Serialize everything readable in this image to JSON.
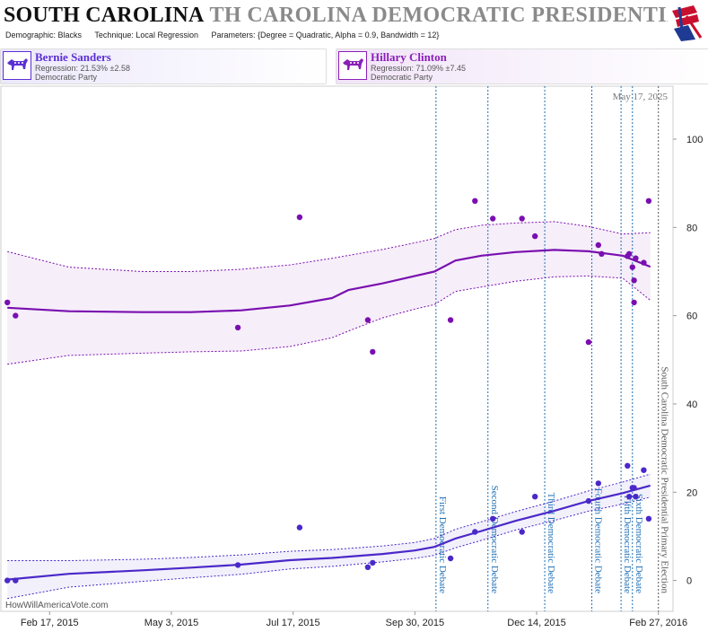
{
  "header": {
    "title": "SOUTH CAROLINA",
    "title_ghost": "TH CAROLINA DEMOCRATIC PRESIDENTIAL PRIMARY",
    "demographic": "Demographic: Blacks",
    "technique": "Technique: Local Regression",
    "parameters": "Parameters: {Degree = Quadratic, Alpha = 0.9, Bandwidth = 12}"
  },
  "candidates": [
    {
      "name": "Bernie Sanders",
      "regression": "Regression: 21.53% ±2.58",
      "party": "Democratic Party",
      "color": "#5b2fd6"
    },
    {
      "name": "Hillary Clinton",
      "regression": "Regression: 71.09% ±7.45",
      "party": "Democratic Party",
      "color": "#8a1fb8"
    }
  ],
  "attribution": "HowWillAmericaVote.com",
  "chart_data": {
    "type": "scatter",
    "date_label": "May 17, 2025",
    "x_ticks": [
      "2015-02-17",
      "2015-05-03",
      "2015-07-17",
      "2015-09-30",
      "2015-12-14",
      "2016-02-27"
    ],
    "x_tick_labels": [
      "Feb 17, 2015",
      "May 3, 2015",
      "Jul 17, 2015",
      "Sep 30, 2015",
      "Dec 14, 2015",
      "Feb 27, 2016"
    ],
    "x_range": [
      "2015-01-18",
      "2016-03-07"
    ],
    "y_ticks": [
      0,
      20,
      40,
      60,
      80,
      100
    ],
    "ylim": [
      -7,
      112
    ],
    "grid": false,
    "events": [
      {
        "date": "2015-10-13",
        "label": "First Democratic Debate",
        "color": "#1f6fb5"
      },
      {
        "date": "2015-11-14",
        "label": "Second Democratic Debate",
        "color": "#1f6fb5"
      },
      {
        "date": "2015-12-19",
        "label": "Third Democratic Debate",
        "color": "#1f6fb5"
      },
      {
        "date": "2016-01-17",
        "label": "Fourth Democratic Debate",
        "color": "#1f6fb5"
      },
      {
        "date": "2016-02-04",
        "label": "Fifth Democratic Debate",
        "color": "#1f6fb5"
      },
      {
        "date": "2016-02-11",
        "label": "Sixth Democratic Debate",
        "color": "#1f6fb5"
      },
      {
        "date": "2016-02-27",
        "label": "South Carolina Democratic Presidential Primary Election",
        "color": "#555555"
      }
    ],
    "series": [
      {
        "name": "Hillary Clinton",
        "color": "#7a0fb0",
        "points": [
          [
            "2015-01-22",
            63
          ],
          [
            "2015-01-27",
            60
          ],
          [
            "2015-06-13",
            57.3
          ],
          [
            "2015-07-21",
            82.3
          ],
          [
            "2015-09-01",
            59
          ],
          [
            "2015-09-04",
            51.8
          ],
          [
            "2015-10-22",
            59
          ],
          [
            "2015-11-06",
            86
          ],
          [
            "2015-11-17",
            82
          ],
          [
            "2015-12-05",
            82
          ],
          [
            "2015-12-13",
            78
          ],
          [
            "2016-01-15",
            54
          ],
          [
            "2016-01-21",
            76
          ],
          [
            "2016-01-23",
            74
          ],
          [
            "2016-02-08",
            73.5
          ],
          [
            "2016-02-09",
            74
          ],
          [
            "2016-02-11",
            71
          ],
          [
            "2016-02-12",
            68
          ],
          [
            "2016-02-12",
            63
          ],
          [
            "2016-02-13",
            73
          ],
          [
            "2016-02-18",
            72
          ],
          [
            "2016-02-21",
            86
          ]
        ],
        "fit": [
          [
            "2015-01-22",
            61.8
          ],
          [
            "2015-03-01",
            61.0
          ],
          [
            "2015-04-15",
            60.8
          ],
          [
            "2015-05-15",
            60.8
          ],
          [
            "2015-06-15",
            61.2
          ],
          [
            "2015-07-15",
            62.3
          ],
          [
            "2015-08-10",
            64.0
          ],
          [
            "2015-08-20",
            65.8
          ],
          [
            "2015-09-10",
            67.3
          ],
          [
            "2015-09-30",
            69.0
          ],
          [
            "2015-10-12",
            70.0
          ],
          [
            "2015-10-25",
            72.5
          ],
          [
            "2015-11-10",
            73.6
          ],
          [
            "2015-12-01",
            74.4
          ],
          [
            "2015-12-25",
            74.9
          ],
          [
            "2016-01-15",
            74.6
          ],
          [
            "2016-02-05",
            73.6
          ],
          [
            "2016-02-22",
            71.1
          ]
        ],
        "band_upper": [
          [
            "2015-01-22",
            74.5
          ],
          [
            "2015-03-01",
            71.0
          ],
          [
            "2015-04-15",
            70.0
          ],
          [
            "2015-05-15",
            70.0
          ],
          [
            "2015-06-15",
            70.5
          ],
          [
            "2015-07-15",
            71.5
          ],
          [
            "2015-08-10",
            73.0
          ],
          [
            "2015-09-10",
            75.0
          ],
          [
            "2015-09-30",
            76.5
          ],
          [
            "2015-10-12",
            77.5
          ],
          [
            "2015-10-25",
            79.5
          ],
          [
            "2015-11-10",
            80.5
          ],
          [
            "2015-12-01",
            81.0
          ],
          [
            "2015-12-25",
            81.3
          ],
          [
            "2016-01-15",
            80.2
          ],
          [
            "2016-02-05",
            78.5
          ],
          [
            "2016-02-22",
            78.8
          ]
        ],
        "band_lower": [
          [
            "2015-01-22",
            49.0
          ],
          [
            "2015-03-01",
            51.0
          ],
          [
            "2015-04-15",
            51.5
          ],
          [
            "2015-05-15",
            51.8
          ],
          [
            "2015-06-15",
            52.0
          ],
          [
            "2015-07-15",
            53.0
          ],
          [
            "2015-08-10",
            55.0
          ],
          [
            "2015-08-20",
            56.5
          ],
          [
            "2015-09-10",
            59.5
          ],
          [
            "2015-09-30",
            61.5
          ],
          [
            "2015-10-12",
            62.5
          ],
          [
            "2015-10-25",
            65.5
          ],
          [
            "2015-11-10",
            66.5
          ],
          [
            "2015-12-01",
            67.8
          ],
          [
            "2015-12-25",
            68.8
          ],
          [
            "2016-01-15",
            69.0
          ],
          [
            "2016-02-05",
            68.5
          ],
          [
            "2016-02-22",
            63.5
          ]
        ]
      },
      {
        "name": "Bernie Sanders",
        "color": "#4a28c9",
        "points": [
          [
            "2015-01-22",
            0
          ],
          [
            "2015-01-27",
            0
          ],
          [
            "2015-06-13",
            3.5
          ],
          [
            "2015-07-21",
            12
          ],
          [
            "2015-09-01",
            3
          ],
          [
            "2015-09-04",
            4
          ],
          [
            "2015-10-22",
            5
          ],
          [
            "2015-11-06",
            11
          ],
          [
            "2015-11-17",
            14
          ],
          [
            "2015-12-05",
            11
          ],
          [
            "2015-12-13",
            19
          ],
          [
            "2016-01-15",
            18
          ],
          [
            "2016-01-21",
            22
          ],
          [
            "2016-02-08",
            26
          ],
          [
            "2016-02-09",
            19
          ],
          [
            "2016-02-11",
            21
          ],
          [
            "2016-02-12",
            21
          ],
          [
            "2016-02-13",
            19
          ],
          [
            "2016-02-18",
            25
          ],
          [
            "2016-02-21",
            14
          ]
        ],
        "fit": [
          [
            "2015-01-22",
            0.2
          ],
          [
            "2015-03-01",
            1.5
          ],
          [
            "2015-04-15",
            2.3
          ],
          [
            "2015-05-15",
            2.9
          ],
          [
            "2015-06-15",
            3.6
          ],
          [
            "2015-07-15",
            4.6
          ],
          [
            "2015-08-10",
            5.1
          ],
          [
            "2015-09-10",
            6.0
          ],
          [
            "2015-09-30",
            6.8
          ],
          [
            "2015-10-12",
            7.6
          ],
          [
            "2015-10-25",
            9.5
          ],
          [
            "2015-11-10",
            11.2
          ],
          [
            "2015-12-01",
            13.5
          ],
          [
            "2015-12-25",
            15.8
          ],
          [
            "2016-01-15",
            18.0
          ],
          [
            "2016-02-05",
            19.8
          ],
          [
            "2016-02-22",
            21.5
          ]
        ],
        "band_upper": [
          [
            "2015-01-22",
            4.5
          ],
          [
            "2015-03-01",
            4.5
          ],
          [
            "2015-04-15",
            4.8
          ],
          [
            "2015-05-15",
            5.2
          ],
          [
            "2015-06-15",
            5.8
          ],
          [
            "2015-07-15",
            6.6
          ],
          [
            "2015-08-10",
            7.0
          ],
          [
            "2015-09-10",
            7.8
          ],
          [
            "2015-09-30",
            8.6
          ],
          [
            "2015-10-12",
            9.5
          ],
          [
            "2015-10-25",
            11.6
          ],
          [
            "2015-11-10",
            13.3
          ],
          [
            "2015-12-01",
            15.6
          ],
          [
            "2015-12-25",
            18.0
          ],
          [
            "2016-01-15",
            20.3
          ],
          [
            "2016-02-05",
            22.3
          ],
          [
            "2016-02-22",
            24.1
          ]
        ],
        "band_lower": [
          [
            "2015-01-22",
            -4.1
          ],
          [
            "2015-03-01",
            -1.5
          ],
          [
            "2015-04-15",
            -0.2
          ],
          [
            "2015-05-15",
            0.6
          ],
          [
            "2015-06-15",
            1.4
          ],
          [
            "2015-07-15",
            2.6
          ],
          [
            "2015-08-10",
            3.2
          ],
          [
            "2015-09-10",
            4.2
          ],
          [
            "2015-09-30",
            5.0
          ],
          [
            "2015-10-12",
            5.7
          ],
          [
            "2015-10-25",
            7.4
          ],
          [
            "2015-11-10",
            9.1
          ],
          [
            "2015-12-01",
            11.4
          ],
          [
            "2015-12-25",
            13.6
          ],
          [
            "2016-01-15",
            15.7
          ],
          [
            "2016-02-05",
            17.3
          ],
          [
            "2016-02-22",
            18.9
          ]
        ]
      }
    ]
  }
}
